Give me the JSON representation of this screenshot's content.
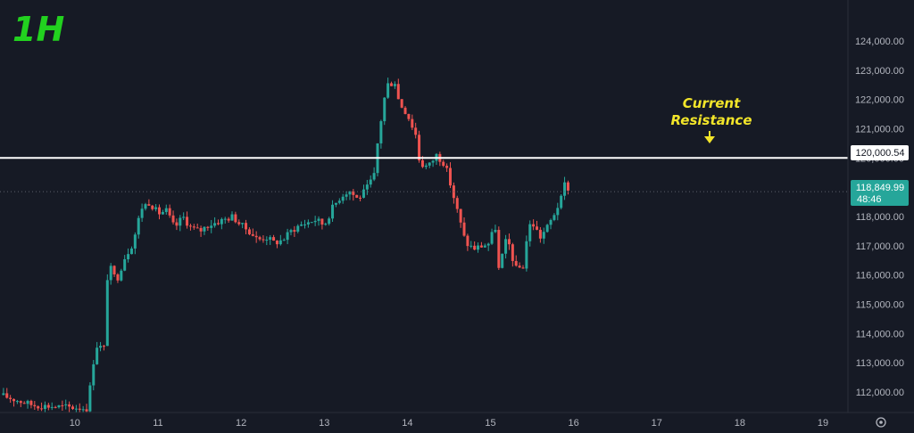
{
  "chart_data": {
    "type": "candlestick",
    "timeframe": "1H",
    "x_ticks": [
      "10",
      "11",
      "12",
      "13",
      "14",
      "15",
      "16",
      "17",
      "18",
      "19"
    ],
    "y_ticks": [
      112000,
      113000,
      114000,
      115000,
      116000,
      117000,
      118000,
      119000,
      120000,
      121000,
      122000,
      123000,
      124000
    ],
    "y_tick_labels": [
      "112,000.00",
      "113,000.00",
      "114,000.00",
      "115,000.00",
      "116,000.00",
      "117,000.00",
      "118,000.00",
      "119,000.00",
      "120,000.00",
      "121,000.00",
      "122,000.00",
      "123,000.00",
      "124,000.00"
    ],
    "xlim": [
      9.6,
      19.8
    ],
    "ylim": [
      111300,
      125400
    ],
    "grid": false,
    "close_series": [
      [
        9.6,
        111900
      ],
      [
        10.0,
        111550
      ],
      [
        10.3,
        111500
      ],
      [
        10.65,
        111450
      ],
      [
        10.7,
        112500
      ],
      [
        10.75,
        113600
      ],
      [
        10.85,
        113500
      ],
      [
        10.9,
        116400
      ],
      [
        11.0,
        115800
      ],
      [
        11.1,
        116600
      ],
      [
        11.2,
        117100
      ],
      [
        11.3,
        118300
      ],
      [
        11.4,
        118500
      ],
      [
        11.5,
        118100
      ],
      [
        11.6,
        118200
      ],
      [
        11.7,
        117600
      ],
      [
        11.8,
        118000
      ],
      [
        11.9,
        117600
      ],
      [
        12.0,
        117500
      ],
      [
        12.1,
        117700
      ],
      [
        12.2,
        117800
      ],
      [
        12.3,
        117900
      ],
      [
        12.4,
        118000
      ],
      [
        12.5,
        117700
      ],
      [
        12.6,
        117500
      ],
      [
        12.7,
        117200
      ],
      [
        12.8,
        117300
      ],
      [
        12.9,
        117100
      ],
      [
        13.0,
        117200
      ],
      [
        13.1,
        117500
      ],
      [
        13.2,
        117700
      ],
      [
        13.3,
        117800
      ],
      [
        13.4,
        117900
      ],
      [
        13.5,
        117700
      ],
      [
        13.6,
        118300
      ],
      [
        13.7,
        118700
      ],
      [
        13.8,
        118900
      ],
      [
        13.9,
        118600
      ],
      [
        14.0,
        118900
      ],
      [
        14.1,
        119400
      ],
      [
        14.15,
        120700
      ],
      [
        14.25,
        122500
      ],
      [
        14.35,
        122600
      ],
      [
        14.4,
        121900
      ],
      [
        14.5,
        121500
      ],
      [
        14.6,
        120800
      ],
      [
        14.65,
        119800
      ],
      [
        14.75,
        119700
      ],
      [
        14.85,
        120100
      ],
      [
        14.95,
        119800
      ],
      [
        15.0,
        119300
      ],
      [
        15.1,
        118200
      ],
      [
        15.2,
        117100
      ],
      [
        15.3,
        116900
      ],
      [
        15.4,
        117000
      ],
      [
        15.5,
        117100
      ],
      [
        15.55,
        117900
      ],
      [
        15.6,
        116200
      ],
      [
        15.7,
        117300
      ],
      [
        15.8,
        116200
      ],
      [
        15.9,
        116300
      ],
      [
        15.95,
        117600
      ],
      [
        16.0,
        117800
      ],
      [
        16.1,
        117300
      ],
      [
        16.2,
        117700
      ],
      [
        16.3,
        118300
      ],
      [
        16.35,
        118600
      ],
      [
        16.4,
        119200
      ],
      [
        16.45,
        118850
      ]
    ],
    "current_price": {
      "value": 118849.99,
      "label": "118,849.99",
      "countdown": "48:46"
    },
    "resistance_level": {
      "value": 120000.54,
      "label": "120,000.54"
    },
    "annotation": {
      "line1": "Current",
      "line2": "Resistance"
    },
    "colors": {
      "up": "#26a69a",
      "down": "#ef5350",
      "resistance": "#ffffff",
      "annotation": "#f2e52a",
      "timeframe": "#22d11f",
      "background": "#161a25"
    }
  }
}
